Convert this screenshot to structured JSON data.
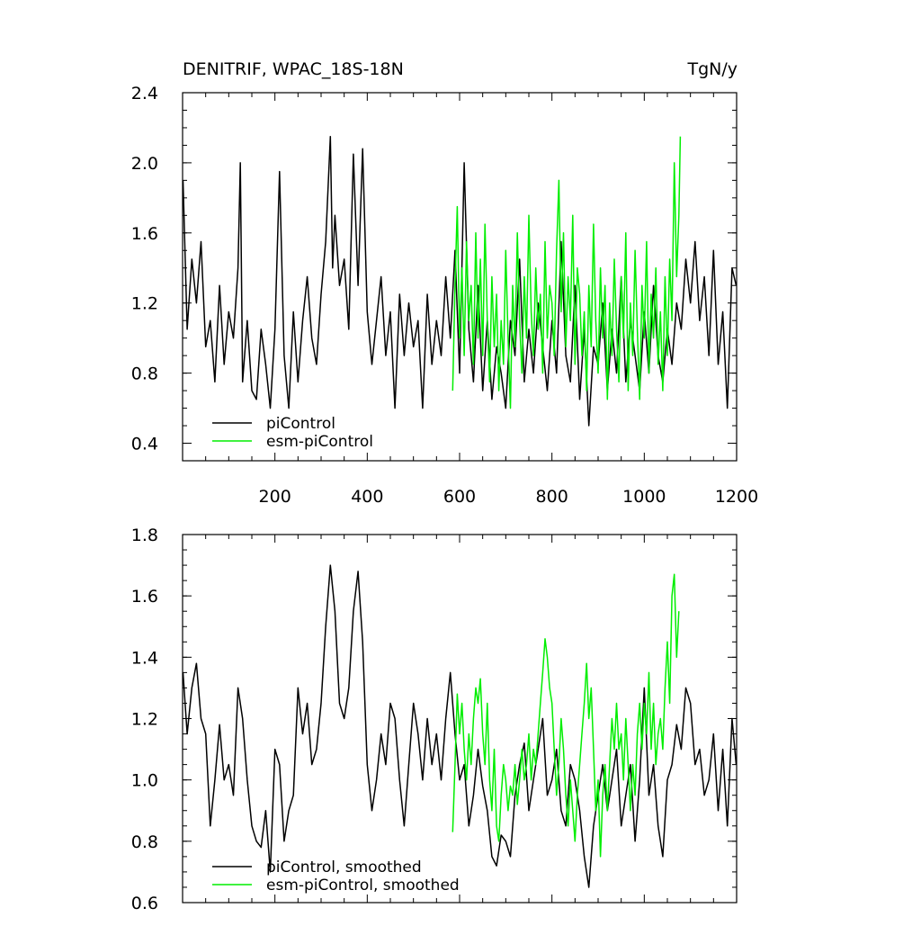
{
  "chart_data": [
    {
      "type": "line",
      "title": "DENITRIF, WPAC_18S-18N",
      "units": "TgN/y",
      "xlim": [
        0,
        1200
      ],
      "ylim": [
        0.3,
        2.4
      ],
      "x_ticks": [
        200,
        400,
        600,
        800,
        1000,
        1200
      ],
      "y_ticks": [
        0.4,
        0.8,
        1.2,
        1.6,
        2.0,
        2.4
      ],
      "y_tick_labels": [
        "0.4",
        "0.8",
        "1.2",
        "1.6",
        "2.0",
        "2.4"
      ],
      "legend_position": "bottom-left",
      "series": [
        {
          "name": "piControl",
          "color": "#000000",
          "x": [
            1,
            10,
            20,
            30,
            40,
            50,
            60,
            70,
            80,
            90,
            100,
            110,
            120,
            125,
            130,
            140,
            150,
            160,
            170,
            180,
            190,
            200,
            210,
            220,
            230,
            240,
            250,
            260,
            270,
            280,
            290,
            300,
            310,
            320,
            325,
            330,
            340,
            350,
            360,
            370,
            380,
            390,
            400,
            410,
            420,
            430,
            440,
            450,
            460,
            470,
            480,
            490,
            500,
            510,
            520,
            530,
            540,
            550,
            560,
            570,
            580,
            590,
            600,
            610,
            620,
            630,
            640,
            650,
            660,
            670,
            680,
            690,
            700,
            710,
            720,
            730,
            740,
            750,
            760,
            770,
            780,
            790,
            800,
            810,
            820,
            830,
            840,
            850,
            860,
            870,
            880,
            890,
            900,
            910,
            920,
            930,
            940,
            950,
            960,
            970,
            980,
            990,
            1000,
            1010,
            1020,
            1030,
            1040,
            1050,
            1060,
            1070,
            1080,
            1090,
            1100,
            1110,
            1120,
            1130,
            1140,
            1150,
            1160,
            1170,
            1180,
            1190,
            1199
          ],
          "y": [
            1.9,
            1.05,
            1.45,
            1.2,
            1.55,
            0.95,
            1.1,
            0.75,
            1.3,
            0.85,
            1.15,
            1.0,
            1.4,
            2.0,
            0.75,
            1.1,
            0.7,
            0.65,
            1.05,
            0.85,
            0.6,
            1.05,
            1.95,
            0.9,
            0.6,
            1.15,
            0.75,
            1.1,
            1.35,
            1.0,
            0.85,
            1.25,
            1.55,
            2.15,
            1.4,
            1.7,
            1.3,
            1.45,
            1.05,
            2.05,
            1.3,
            2.08,
            1.15,
            0.85,
            1.1,
            1.35,
            0.9,
            1.15,
            0.6,
            1.25,
            0.9,
            1.2,
            0.95,
            1.1,
            0.6,
            1.25,
            0.85,
            1.1,
            0.9,
            1.35,
            1.0,
            1.5,
            0.8,
            2.0,
            1.05,
            0.75,
            1.3,
            0.7,
            1.1,
            0.65,
            0.95,
            0.8,
            0.6,
            1.1,
            0.9,
            1.45,
            0.75,
            1.05,
            0.8,
            1.2,
            0.95,
            0.7,
            1.1,
            0.8,
            1.55,
            0.9,
            0.75,
            1.3,
            0.65,
            1.05,
            0.5,
            0.95,
            0.85,
            1.2,
            0.7,
            1.05,
            0.8,
            1.35,
            0.75,
            1.1,
            0.9,
            0.7,
            1.15,
            0.8,
            1.3,
            0.9,
            0.75,
            1.05,
            0.85,
            1.2,
            1.05,
            1.45,
            1.2,
            1.55,
            1.1,
            1.35,
            0.9,
            1.5,
            0.85,
            1.15,
            0.6,
            1.4,
            1.3
          ]
        },
        {
          "name": "esm-piControl",
          "color": "#00ee00",
          "x": [
            585,
            590,
            595,
            600,
            605,
            610,
            615,
            620,
            625,
            630,
            635,
            640,
            645,
            650,
            655,
            660,
            665,
            670,
            675,
            680,
            685,
            690,
            695,
            700,
            705,
            710,
            715,
            720,
            725,
            730,
            735,
            740,
            745,
            750,
            755,
            760,
            765,
            770,
            775,
            780,
            785,
            790,
            795,
            800,
            805,
            810,
            815,
            820,
            825,
            830,
            835,
            840,
            845,
            850,
            855,
            860,
            865,
            870,
            875,
            880,
            885,
            890,
            895,
            900,
            905,
            910,
            915,
            920,
            925,
            930,
            935,
            940,
            945,
            950,
            955,
            960,
            965,
            970,
            975,
            980,
            985,
            990,
            995,
            1000,
            1005,
            1010,
            1015,
            1020,
            1025,
            1030,
            1035,
            1040,
            1045,
            1050,
            1055,
            1060,
            1065,
            1070,
            1075,
            1078
          ],
          "y": [
            0.7,
            1.3,
            1.75,
            1.0,
            1.4,
            0.9,
            1.55,
            1.1,
            1.3,
            0.85,
            1.6,
            1.0,
            1.45,
            0.9,
            1.65,
            1.1,
            0.75,
            1.35,
            0.95,
            1.25,
            0.7,
            1.1,
            0.85,
            1.5,
            1.0,
            0.6,
            1.3,
            0.95,
            1.6,
            1.1,
            0.8,
            1.35,
            1.0,
            1.7,
            1.15,
            0.9,
            1.4,
            1.05,
            1.25,
            0.8,
            1.55,
            1.0,
            1.3,
            1.2,
            0.9,
            1.5,
            1.9,
            1.15,
            1.6,
            0.95,
            1.35,
            1.1,
            1.7,
            0.85,
            1.4,
            1.25,
            0.9,
            1.15,
            0.7,
            1.3,
            0.95,
            1.65,
            1.1,
            0.8,
            1.4,
            1.0,
            1.3,
            0.65,
            1.2,
            0.9,
            1.45,
            1.05,
            0.75,
            1.35,
            1.0,
            1.6,
            0.7,
            1.2,
            0.9,
            1.5,
            1.05,
            0.65,
            1.3,
            1.0,
            1.55,
            0.8,
            1.25,
            1.0,
            1.4,
            0.85,
            1.15,
            0.7,
            1.35,
            0.9,
            1.45,
            1.1,
            2.0,
            1.35,
            1.7,
            2.15
          ]
        }
      ]
    },
    {
      "type": "line",
      "xlim": [
        0,
        1200
      ],
      "ylim": [
        0.6,
        1.8
      ],
      "y_ticks": [
        0.6,
        0.8,
        1.0,
        1.2,
        1.4,
        1.6,
        1.8
      ],
      "y_tick_labels": [
        "0.6",
        "0.8",
        "1.0",
        "1.2",
        "1.4",
        "1.6",
        "1.8"
      ],
      "legend_position": "bottom-left",
      "series": [
        {
          "name": "piControl, smoothed",
          "color": "#000000",
          "x": [
            1,
            10,
            20,
            30,
            40,
            50,
            60,
            70,
            80,
            90,
            100,
            110,
            120,
            130,
            140,
            150,
            160,
            170,
            180,
            190,
            200,
            210,
            220,
            230,
            240,
            250,
            260,
            270,
            280,
            290,
            300,
            310,
            320,
            330,
            340,
            350,
            360,
            370,
            380,
            390,
            400,
            410,
            420,
            430,
            440,
            450,
            460,
            470,
            480,
            490,
            500,
            510,
            520,
            530,
            540,
            550,
            560,
            570,
            580,
            590,
            600,
            610,
            620,
            630,
            640,
            650,
            660,
            670,
            680,
            690,
            700,
            710,
            720,
            730,
            740,
            750,
            760,
            770,
            780,
            790,
            800,
            810,
            820,
            830,
            840,
            850,
            860,
            870,
            880,
            890,
            900,
            910,
            920,
            930,
            940,
            950,
            960,
            970,
            980,
            990,
            1000,
            1010,
            1020,
            1030,
            1040,
            1050,
            1060,
            1070,
            1080,
            1090,
            1100,
            1110,
            1120,
            1130,
            1140,
            1150,
            1160,
            1170,
            1180,
            1190,
            1199
          ],
          "y": [
            1.35,
            1.15,
            1.3,
            1.38,
            1.2,
            1.15,
            0.85,
            1.0,
            1.18,
            1.0,
            1.05,
            0.95,
            1.3,
            1.2,
            1.0,
            0.85,
            0.8,
            0.78,
            0.9,
            0.7,
            1.1,
            1.05,
            0.8,
            0.9,
            0.95,
            1.3,
            1.15,
            1.25,
            1.05,
            1.1,
            1.25,
            1.5,
            1.7,
            1.55,
            1.25,
            1.2,
            1.3,
            1.55,
            1.68,
            1.45,
            1.05,
            0.9,
            1.0,
            1.15,
            1.05,
            1.25,
            1.2,
            1.0,
            0.85,
            1.05,
            1.25,
            1.15,
            1.0,
            1.2,
            1.05,
            1.15,
            1.0,
            1.2,
            1.35,
            1.15,
            1.0,
            1.05,
            0.85,
            0.95,
            1.1,
            0.98,
            0.9,
            0.75,
            0.72,
            0.82,
            0.8,
            0.75,
            0.95,
            1.05,
            1.12,
            0.9,
            1.0,
            1.1,
            1.2,
            0.95,
            1.0,
            1.1,
            0.9,
            0.85,
            1.05,
            1.0,
            0.9,
            0.75,
            0.65,
            0.85,
            0.95,
            1.05,
            0.9,
            1.0,
            1.1,
            0.85,
            0.95,
            1.05,
            0.8,
            1.0,
            1.3,
            0.95,
            1.05,
            0.85,
            0.75,
            1.0,
            1.05,
            1.18,
            1.1,
            1.3,
            1.25,
            1.05,
            1.1,
            0.95,
            1.0,
            1.15,
            0.9,
            1.1,
            0.85,
            1.2,
            1.05
          ]
        },
        {
          "name": "esm-piControl, smoothed",
          "color": "#00ee00",
          "x": [
            585,
            590,
            595,
            600,
            605,
            610,
            615,
            620,
            625,
            630,
            635,
            640,
            645,
            650,
            655,
            660,
            665,
            670,
            675,
            680,
            685,
            690,
            695,
            700,
            705,
            710,
            715,
            720,
            725,
            730,
            735,
            740,
            745,
            750,
            755,
            760,
            765,
            770,
            775,
            780,
            785,
            790,
            795,
            800,
            805,
            810,
            815,
            820,
            825,
            830,
            835,
            840,
            845,
            850,
            855,
            860,
            865,
            870,
            875,
            880,
            885,
            890,
            895,
            900,
            905,
            910,
            915,
            920,
            925,
            930,
            935,
            940,
            945,
            950,
            955,
            960,
            965,
            970,
            975,
            980,
            985,
            990,
            995,
            1000,
            1005,
            1010,
            1015,
            1020,
            1025,
            1030,
            1035,
            1040,
            1045,
            1050,
            1055,
            1060,
            1065,
            1070,
            1075
          ],
          "y": [
            0.83,
            1.05,
            1.28,
            1.15,
            1.25,
            1.1,
            1.0,
            1.15,
            1.05,
            1.2,
            1.3,
            1.25,
            1.33,
            1.15,
            1.05,
            1.25,
            1.0,
            0.9,
            1.1,
            0.85,
            0.8,
            0.95,
            1.05,
            1.0,
            0.9,
            0.98,
            0.95,
            1.05,
            0.92,
            1.0,
            1.1,
            1.0,
            1.05,
            1.15,
            1.0,
            1.1,
            1.05,
            1.15,
            1.25,
            1.35,
            1.46,
            1.4,
            1.3,
            1.25,
            1.1,
            0.95,
            1.05,
            1.2,
            1.1,
            0.95,
            0.85,
            1.0,
            0.9,
            0.8,
            0.95,
            1.05,
            1.15,
            1.25,
            1.38,
            1.2,
            1.3,
            1.1,
            0.9,
            1.0,
            0.75,
            0.95,
            1.05,
            0.9,
            1.05,
            1.2,
            1.1,
            1.25,
            1.1,
            1.15,
            1.0,
            1.2,
            1.05,
            0.9,
            1.05,
            0.95,
            1.15,
            1.25,
            1.1,
            1.25,
            1.15,
            1.35,
            1.1,
            1.25,
            1.05,
            1.15,
            1.2,
            1.1,
            1.3,
            1.45,
            1.25,
            1.6,
            1.67,
            1.4,
            1.55
          ]
        }
      ]
    }
  ]
}
